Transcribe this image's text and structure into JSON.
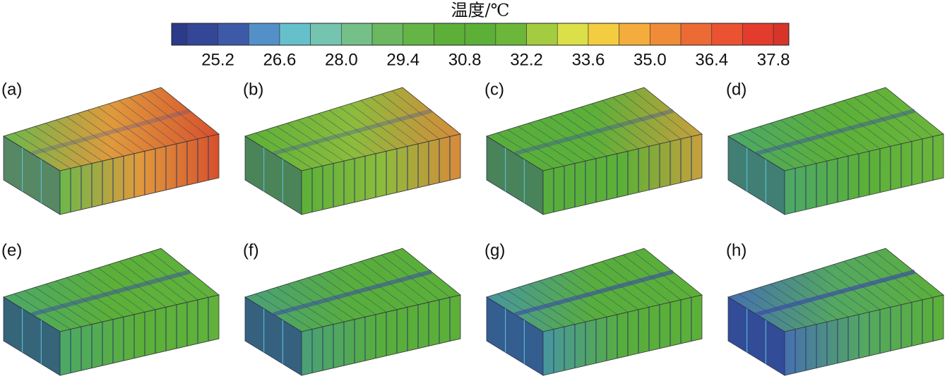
{
  "colorbar": {
    "title": "温度/℃",
    "colors": [
      "#2c3a8a",
      "#344698",
      "#3c5aa8",
      "#5490c8",
      "#66c0cc",
      "#74c4b0",
      "#74c088",
      "#6cb860",
      "#64b446",
      "#5cb038",
      "#5cb038",
      "#6cb63a",
      "#a4cc40",
      "#dce048",
      "#f4cc40",
      "#f4ac3c",
      "#f08c38",
      "#ec6a34",
      "#ea5232",
      "#e43c2c",
      "#d8342a"
    ],
    "ticks": [
      "25.2",
      "26.6",
      "28.0",
      "29.4",
      "30.8",
      "32.2",
      "33.6",
      "35.0",
      "36.4",
      "37.8"
    ]
  },
  "panels": [
    {
      "label": "(a)"
    },
    {
      "label": "(b)"
    },
    {
      "label": "(c)"
    },
    {
      "label": "(d)"
    },
    {
      "label": "(e)"
    },
    {
      "label": "(f)"
    },
    {
      "label": "(g)"
    },
    {
      "label": "(h)"
    }
  ]
}
